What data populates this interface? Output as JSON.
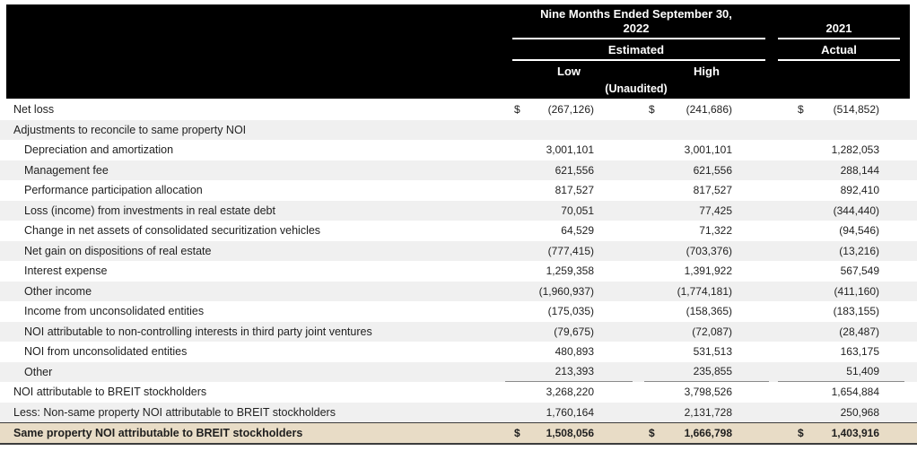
{
  "header": {
    "period_2022": {
      "line1": "Nine Months Ended September 30,",
      "line2": "2022",
      "subtitle": "Estimated",
      "col_low": "Low",
      "col_high": "High",
      "note": "(Unaudited)"
    },
    "period_2021": {
      "title": "2021",
      "subtitle": "Actual"
    }
  },
  "currency_symbol": "$",
  "colors": {
    "header_bg": "#000000",
    "header_text": "#ffffff",
    "row_alt_bg": "#f0f0f0",
    "total_row_bg": "#e8dcc6",
    "total_row_border": "#3c3c3c",
    "body_text": "#1f1f1f"
  },
  "rows": [
    {
      "label": "Net loss",
      "indent": 0,
      "shade": "white",
      "dollar": true,
      "low": "(267,126)",
      "high": "(241,686)",
      "actual": "(514,852)"
    },
    {
      "label": "Adjustments to reconcile to same property NOI",
      "indent": 0,
      "shade": "gray",
      "low": "",
      "high": "",
      "actual": ""
    },
    {
      "label": "Depreciation and amortization",
      "indent": 1,
      "shade": "white",
      "low": "3,001,101",
      "high": "3,001,101",
      "actual": "1,282,053"
    },
    {
      "label": "Management fee",
      "indent": 1,
      "shade": "gray",
      "low": "621,556",
      "high": "621,556",
      "actual": "288,144"
    },
    {
      "label": "Performance participation allocation",
      "indent": 1,
      "shade": "white",
      "low": "817,527",
      "high": "817,527",
      "actual": "892,410"
    },
    {
      "label": "Loss (income) from investments in real estate debt",
      "indent": 1,
      "shade": "gray",
      "low": "70,051",
      "high": "77,425",
      "actual": "(344,440)"
    },
    {
      "label": "Change in net assets of consolidated securitization vehicles",
      "indent": 1,
      "shade": "white",
      "low": "64,529",
      "high": "71,322",
      "actual": "(94,546)"
    },
    {
      "label": "Net gain on dispositions of real estate",
      "indent": 1,
      "shade": "gray",
      "low": "(777,415)",
      "high": "(703,376)",
      "actual": "(13,216)"
    },
    {
      "label": "Interest expense",
      "indent": 1,
      "shade": "white",
      "low": "1,259,358",
      "high": "1,391,922",
      "actual": "567,549"
    },
    {
      "label": "Other income",
      "indent": 1,
      "shade": "gray",
      "low": "(1,960,937)",
      "high": "(1,774,181)",
      "actual": "(411,160)"
    },
    {
      "label": "Income from unconsolidated entities",
      "indent": 1,
      "shade": "white",
      "low": "(175,035)",
      "high": "(158,365)",
      "actual": "(183,155)"
    },
    {
      "label": "NOI attributable to non-controlling interests in third party joint ventures",
      "indent": 1,
      "shade": "gray",
      "low": "(79,675)",
      "high": "(72,087)",
      "actual": "(28,487)"
    },
    {
      "label": "NOI from unconsolidated entities",
      "indent": 1,
      "shade": "white",
      "low": "480,893",
      "high": "531,513",
      "actual": "163,175"
    },
    {
      "label": "Other",
      "indent": 1,
      "shade": "gray",
      "rule_after": true,
      "low": "213,393",
      "high": "235,855",
      "actual": "51,409"
    },
    {
      "label": "NOI attributable to BREIT stockholders",
      "indent": 0,
      "shade": "white",
      "low": "3,268,220",
      "high": "3,798,526",
      "actual": "1,654,884"
    },
    {
      "label": "Less: Non-same property NOI attributable to BREIT stockholders",
      "indent": 0,
      "shade": "gray",
      "low": "1,760,164",
      "high": "2,131,728",
      "actual": "250,968"
    },
    {
      "label": "Same property NOI attributable to BREIT stockholders",
      "indent": 0,
      "shade": "beige",
      "dollar": true,
      "bold": true,
      "low": "1,508,056",
      "high": "1,666,798",
      "actual": "1,403,916"
    }
  ],
  "chart_data": {
    "type": "table",
    "title": "Reconciliation of Net loss to Same property NOI attributable to BREIT stockholders",
    "columns": [
      "Nine Months Ended September 30, 2022 Estimated (Unaudited) Low",
      "Nine Months Ended September 30, 2022 Estimated (Unaudited) High",
      "2021 Actual"
    ],
    "rows": [
      {
        "label": "Net loss",
        "values": [
          -267126,
          -241686,
          -514852
        ]
      },
      {
        "label": "Adjustments to reconcile to same property NOI",
        "values": [
          null,
          null,
          null
        ]
      },
      {
        "label": "Depreciation and amortization",
        "values": [
          3001101,
          3001101,
          1282053
        ]
      },
      {
        "label": "Management fee",
        "values": [
          621556,
          621556,
          288144
        ]
      },
      {
        "label": "Performance participation allocation",
        "values": [
          817527,
          817527,
          892410
        ]
      },
      {
        "label": "Loss (income) from investments in real estate debt",
        "values": [
          70051,
          77425,
          -344440
        ]
      },
      {
        "label": "Change in net assets of consolidated securitization vehicles",
        "values": [
          64529,
          71322,
          -94546
        ]
      },
      {
        "label": "Net gain on dispositions of real estate",
        "values": [
          -777415,
          -703376,
          -13216
        ]
      },
      {
        "label": "Interest expense",
        "values": [
          1259358,
          1391922,
          567549
        ]
      },
      {
        "label": "Other income",
        "values": [
          -1960937,
          -1774181,
          -411160
        ]
      },
      {
        "label": "Income from unconsolidated entities",
        "values": [
          -175035,
          -158365,
          -183155
        ]
      },
      {
        "label": "NOI attributable to non-controlling interests in third party joint ventures",
        "values": [
          -79675,
          -72087,
          -28487
        ]
      },
      {
        "label": "NOI from unconsolidated entities",
        "values": [
          480893,
          531513,
          163175
        ]
      },
      {
        "label": "Other",
        "values": [
          213393,
          235855,
          51409
        ]
      },
      {
        "label": "NOI attributable to BREIT stockholders",
        "values": [
          3268220,
          3798526,
          1654884
        ]
      },
      {
        "label": "Less: Non-same property NOI attributable to BREIT stockholders",
        "values": [
          1760164,
          2131728,
          250968
        ]
      },
      {
        "label": "Same property NOI attributable to BREIT stockholders",
        "values": [
          1508056,
          1666798,
          1403916
        ]
      }
    ]
  }
}
